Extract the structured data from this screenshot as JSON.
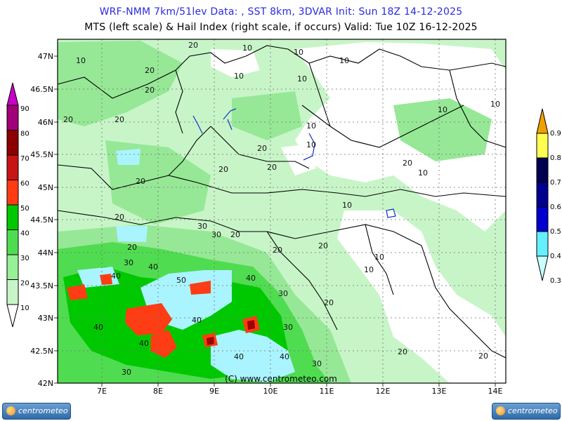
{
  "header": {
    "line1": "WRF-NMM 7km/51lev  Data: , SST 8km, 3DVAR   Init: Sun 18Z 14-12-2025",
    "line2": "MTS (left scale) & Hail Index (right scale, if occurs) Valid: Tue 10Z 16-12-2025"
  },
  "copyright": "(C) www.centrometeo.com",
  "logo_text": "centrometeo",
  "lat_labels": [
    "47N",
    "46.5N",
    "46N",
    "45.5N",
    "45N",
    "44.5N",
    "44N",
    "43.5N",
    "43N",
    "42.5N",
    "42N"
  ],
  "lon_labels": [
    "7E",
    "8E",
    "9E",
    "10E",
    "11E",
    "12E",
    "13E",
    "14E"
  ],
  "left_scale": {
    "levels": [
      "90",
      "80",
      "70",
      "60",
      "50",
      "40",
      "30",
      "20",
      "10"
    ],
    "colors": [
      "#c800c8",
      "#a00078",
      "#8c0000",
      "#c81414",
      "#ff3c14",
      "#00c800",
      "#50dc50",
      "#96f096",
      "#c8f5c8",
      "#ffffff"
    ]
  },
  "right_scale": {
    "levels": [
      "0.9",
      "0.8",
      "0.7",
      "0.6",
      "0.5",
      "0.4",
      "0.3"
    ],
    "colors": [
      "#f0a000",
      "#ffff50",
      "#000050",
      "#000090",
      "#0000d0",
      "#64f0ff",
      "#c8ffff"
    ]
  },
  "contour_labels": [
    "10",
    "20",
    "30",
    "40",
    "50"
  ],
  "colors": {
    "map_base": "#c8f5c8",
    "light": "#96e896",
    "mid": "#50dc50",
    "strong": "#00c800",
    "red": "#ff3c14",
    "hail": "#aaf4ff",
    "white_zone": "#ffffff",
    "border": "#000000",
    "grid": "#707070",
    "title_blue": "#2a2ae0"
  }
}
